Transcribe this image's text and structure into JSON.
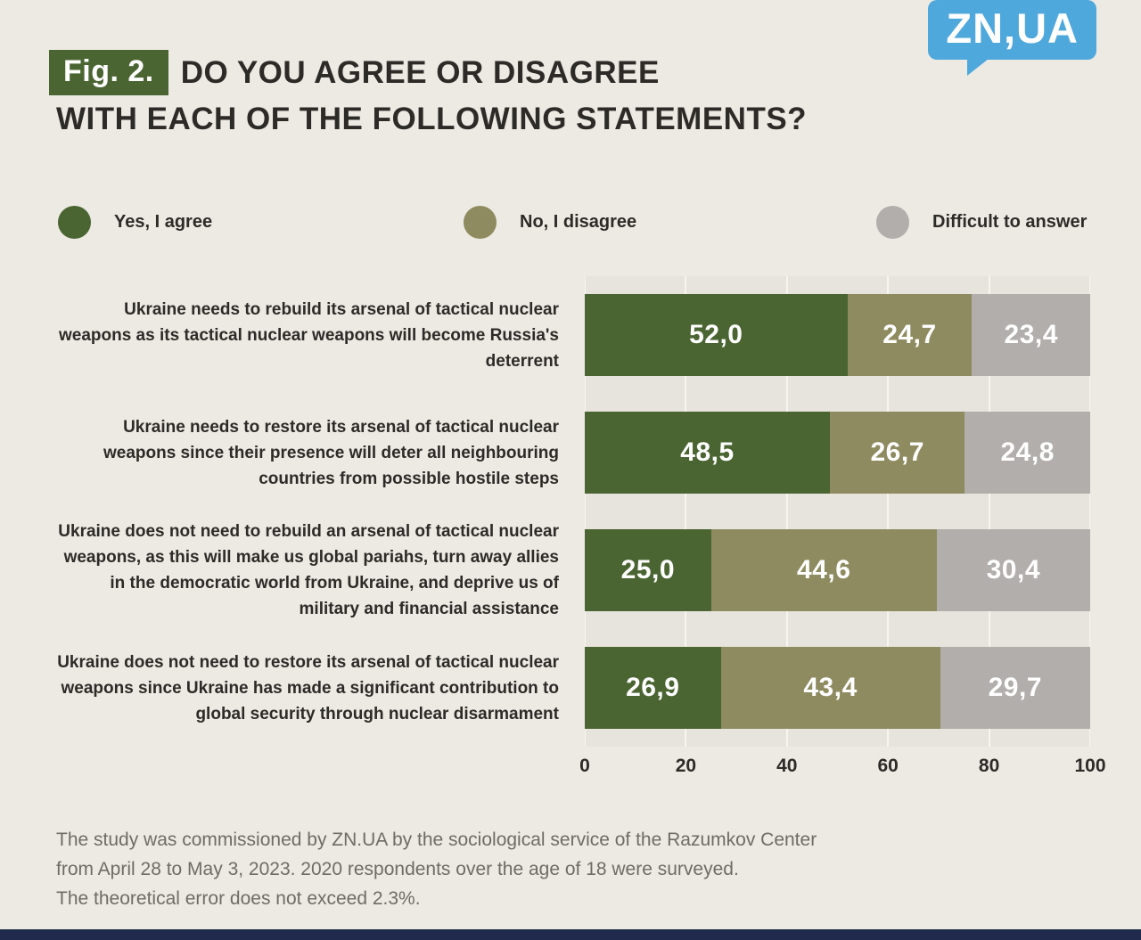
{
  "header": {
    "fig_label": "Fig. 2.",
    "title_line1": "DO YOU AGREE OR DISAGREE",
    "title_line2": "WITH EACH OF THE FOLLOWING STATEMENTS?",
    "logo_text": "ZN,UA"
  },
  "colors": {
    "page_bg": "#edeae4",
    "plot_bg": "#e7e4dd",
    "green": "#4a6532",
    "olive": "#8e8b60",
    "gray": "#b1aeab",
    "blue": "#4fa8dc",
    "navy": "#202a4c",
    "text": "#2d2b27",
    "footer_text": "#6f6c65"
  },
  "legend": [
    {
      "label": "Yes, I agree",
      "color": "#4a6532"
    },
    {
      "label": "No, I disagree",
      "color": "#8e8b60"
    },
    {
      "label": "Difficult to answer",
      "color": "#b1aeab"
    }
  ],
  "chart_data": {
    "type": "bar",
    "orientation": "horizontal",
    "stacked": true,
    "grid": true,
    "legend_position": "top",
    "title": "Do you agree or disagree with each of the following statements?",
    "xlabel": "",
    "ylabel": "",
    "xlim": [
      0,
      100
    ],
    "x_ticks": [
      0,
      20,
      40,
      60,
      80,
      100
    ],
    "categories": [
      "Ukraine needs to rebuild its arsenal of tactical nuclear weapons as its tactical nuclear weapons will become Russia's deterrent",
      "Ukraine needs to restore its arsenal of tactical nuclear weapons since their presence will deter all neighbouring countries from possible hostile steps",
      "Ukraine does not need to rebuild an arsenal of tactical nuclear weapons, as this will make us global pariahs, turn away allies in the democratic world from Ukraine, and deprive us of military and financial assistance",
      "Ukraine does not need to restore its arsenal of tactical nuclear weapons since Ukraine has made a significant contribution to global security through nuclear disarmament"
    ],
    "series": [
      {
        "name": "Yes, I agree",
        "color": "#4a6532",
        "values": [
          52.0,
          48.5,
          25.0,
          26.9
        ],
        "labels": [
          "52,0",
          "48,5",
          "25,0",
          "26,9"
        ]
      },
      {
        "name": "No, I disagree",
        "color": "#8e8b60",
        "values": [
          24.7,
          26.7,
          44.6,
          43.4
        ],
        "labels": [
          "24,7",
          "26,7",
          "44,6",
          "43,4"
        ]
      },
      {
        "name": "Difficult to answer",
        "color": "#b1aeab",
        "values": [
          23.4,
          24.8,
          30.4,
          29.7
        ],
        "labels": [
          "23,4",
          "24,8",
          "30,4",
          "29,7"
        ]
      }
    ]
  },
  "footer": {
    "lines": [
      "The study was commissioned by ZN.UA by the sociological service of the Razumkov Center",
      "from April 28 to May 3, 2023. 2020 respondents over the age of 18 were surveyed.",
      "The theoretical error does not exceed 2.3%."
    ]
  }
}
